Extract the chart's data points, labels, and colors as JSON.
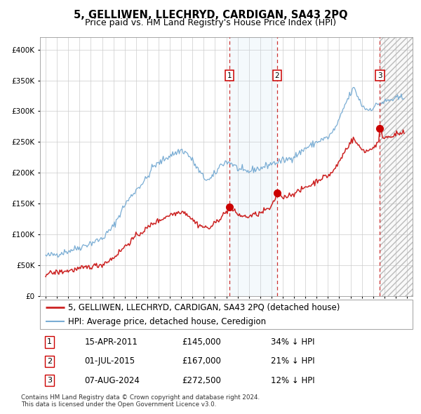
{
  "title": "5, GELLIWEN, LLECHRYD, CARDIGAN, SA43 2PQ",
  "subtitle": "Price paid vs. HM Land Registry's House Price Index (HPI)",
  "ylim": [
    0,
    420000
  ],
  "yticks": [
    0,
    50000,
    100000,
    150000,
    200000,
    250000,
    300000,
    350000,
    400000
  ],
  "ytick_labels": [
    "£0",
    "£50K",
    "£100K",
    "£150K",
    "£200K",
    "£250K",
    "£300K",
    "£350K",
    "£400K"
  ],
  "xlim_start": 1994.5,
  "xlim_end": 2027.5,
  "xticks": [
    1995,
    1996,
    1997,
    1998,
    1999,
    2000,
    2001,
    2002,
    2003,
    2004,
    2005,
    2006,
    2007,
    2008,
    2009,
    2010,
    2011,
    2012,
    2013,
    2014,
    2015,
    2016,
    2017,
    2018,
    2019,
    2020,
    2021,
    2022,
    2023,
    2024,
    2025,
    2026,
    2027
  ],
  "hpi_color": "#7aadd4",
  "price_color": "#cc2222",
  "dot_color": "#cc0000",
  "grid_color": "#cccccc",
  "bg_color": "#ffffff",
  "sale_dates": [
    2011.29,
    2015.5,
    2024.6
  ],
  "sale_prices": [
    145000,
    167000,
    272500
  ],
  "sale_labels": [
    "1",
    "2",
    "3"
  ],
  "legend_line1": "5, GELLIWEN, LLECHRYD, CARDIGAN, SA43 2PQ (detached house)",
  "legend_line2": "HPI: Average price, detached house, Ceredigion",
  "table_data": [
    [
      "1",
      "15-APR-2011",
      "£145,000",
      "34% ↓ HPI"
    ],
    [
      "2",
      "01-JUL-2015",
      "£167,000",
      "21% ↓ HPI"
    ],
    [
      "3",
      "07-AUG-2024",
      "£272,500",
      "12% ↓ HPI"
    ]
  ],
  "footnote": "Contains HM Land Registry data © Crown copyright and database right 2024.\nThis data is licensed under the Open Government Licence v3.0.",
  "title_fontsize": 10.5,
  "subtitle_fontsize": 9,
  "tick_fontsize": 7.5,
  "legend_fontsize": 8.5
}
